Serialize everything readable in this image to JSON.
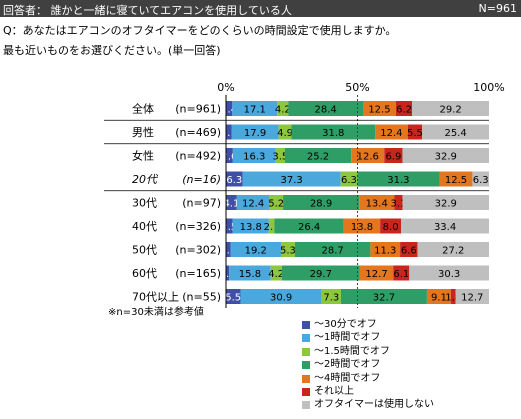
{
  "header": {
    "respondent": "回答者： 誰かと一緒に寝ていてエアコンを使用している人",
    "n_total": "N=961"
  },
  "question": {
    "text": "Q：あなたはエアコンのオフタイマーをどのくらいの時間設定で使用しますか。",
    "instruction": "最も近いものをお選びください。(単一回答)"
  },
  "note": "※n=30未満は参考値",
  "colors": [
    "#3f4fa8",
    "#4aa8dc",
    "#8dc63f",
    "#2e9e66",
    "#e4761e",
    "#c8261c",
    "#bfbfbf"
  ],
  "chart_data": {
    "type": "bar",
    "orientation": "horizontal",
    "stacked": true,
    "xlim": [
      0,
      100
    ],
    "x_ticks": [
      "0%",
      "50%",
      "100%"
    ],
    "categories": [
      {
        "name": "全体",
        "n": "(n=961)",
        "italic": false
      },
      {
        "name": "男性",
        "n": "(n=469)",
        "italic": false
      },
      {
        "name": "女性",
        "n": "(n=492)",
        "italic": false
      },
      {
        "name": "20代",
        "n": "(n=16)",
        "italic": true
      },
      {
        "name": "30代",
        "n": "(n=97)",
        "italic": false
      },
      {
        "name": "40代",
        "n": "(n=326)",
        "italic": false
      },
      {
        "name": "50代",
        "n": "(n=302)",
        "italic": false
      },
      {
        "name": "60代",
        "n": "(n=165)",
        "italic": false
      },
      {
        "name": "70代以上",
        "n": "(n=55)",
        "italic": false
      }
    ],
    "series": [
      {
        "name": "～30分でオフ",
        "values": [
          2.4,
          2.1,
          2.6,
          6.3,
          4.1,
          2.5,
          1.7,
          1.2,
          5.5
        ],
        "labels": [
          "2.4",
          "2.1",
          "2.6",
          "6.3",
          "4.1",
          "2.5",
          "1.7",
          "1.2",
          "5.5"
        ]
      },
      {
        "name": "～1時間でオフ",
        "values": [
          17.1,
          17.9,
          16.3,
          37.3,
          12.4,
          13.8,
          19.2,
          15.8,
          30.9
        ],
        "labels": [
          "17.1",
          "17.9",
          "16.3",
          "37.3",
          "12.4",
          "13.8",
          "19.2",
          "15.8",
          "30.9"
        ]
      },
      {
        "name": "～1.5時間でオフ",
        "values": [
          4.2,
          4.9,
          3.5,
          6.3,
          5.2,
          2.1,
          5.3,
          4.2,
          7.3
        ],
        "labels": [
          "4.2",
          "4.9",
          "3.5",
          "6.3",
          "5.2",
          "2.1",
          "5.3",
          "4.2",
          "7.3"
        ]
      },
      {
        "name": "～2時間でオフ",
        "values": [
          28.4,
          31.8,
          25.2,
          31.3,
          28.9,
          26.4,
          28.7,
          29.7,
          32.7
        ],
        "labels": [
          "28.4",
          "31.8",
          "25.2",
          "31.3",
          "28.9",
          "26.4",
          "28.7",
          "29.7",
          "32.7"
        ]
      },
      {
        "name": "～4時間でオフ",
        "values": [
          12.5,
          12.4,
          12.6,
          12.5,
          13.4,
          13.8,
          11.3,
          12.7,
          9.1
        ],
        "labels": [
          "12.5",
          "12.4",
          "12.6",
          "12.5",
          "13.4",
          "13.8",
          "11.3",
          "12.7",
          "9.1"
        ]
      },
      {
        "name": "それ以上",
        "values": [
          6.2,
          5.5,
          6.9,
          0,
          3.1,
          8.0,
          6.6,
          6.1,
          1.8
        ],
        "labels": [
          "6.2",
          "5.5",
          "6.9",
          "",
          "3.1",
          "8.0",
          "6.6",
          "6.1",
          "1.8"
        ]
      },
      {
        "name": "オフタイマーは使用しない",
        "values": [
          29.2,
          25.4,
          32.9,
          6.3,
          32.9,
          33.4,
          27.2,
          30.3,
          12.7
        ],
        "labels": [
          "29.2",
          "25.4",
          "32.9",
          "6.3",
          "32.9",
          "33.4",
          "27.2",
          "30.3",
          "12.7"
        ]
      }
    ]
  }
}
